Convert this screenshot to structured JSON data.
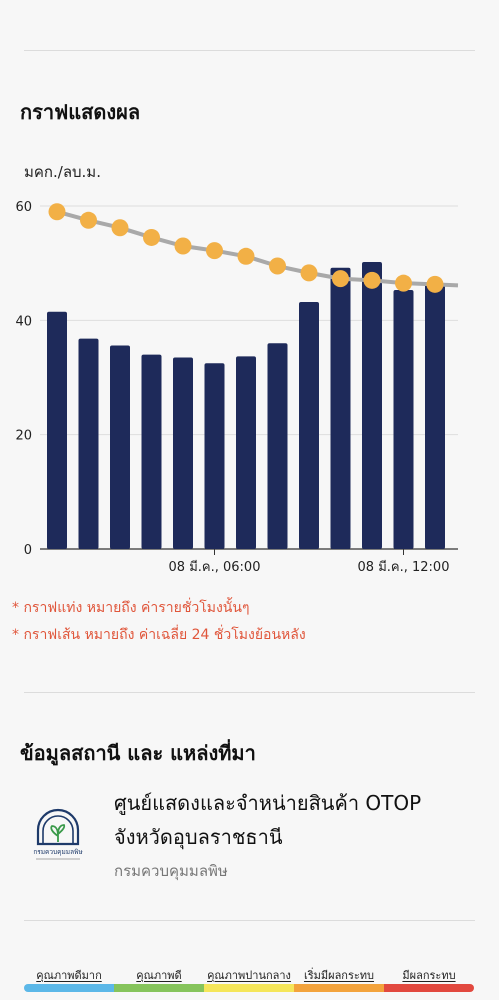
{
  "graph_section": {
    "title": "กราฟแสดงผล",
    "unit": "มคก./ลบ.ม."
  },
  "chart_data": {
    "type": "bar",
    "categories": [
      "",
      "",
      "",
      "",
      "",
      "",
      "",
      "",
      "",
      "",
      "",
      "",
      ""
    ],
    "x_tick_labels": [
      "08 มี.ค., 06:00",
      "08 มี.ค., 12:00"
    ],
    "series": [
      {
        "values": [
          41.5,
          36.8,
          35.6,
          34,
          33.5,
          32.5,
          33.7,
          36,
          43.2,
          49.2,
          50.2,
          45.3,
          46.5
        ]
      },
      {
        "type": "line",
        "values": [
          59,
          57.5,
          56.2,
          54.5,
          53,
          52.2,
          51.2,
          49.5,
          48.3,
          47.3,
          47,
          46.5,
          46.3
        ]
      }
    ],
    "ylim": [
      0,
      60
    ],
    "yticks": [
      0,
      20,
      40,
      60
    ],
    "bar_color": "#1e2a5a",
    "line_color": "#a9a9a9",
    "point_color": "#f2b046",
    "grid": true
  },
  "notes": [
    "* กราฟแท่ง หมายถึง ค่ารายชั่วโมงนั้นๆ",
    "* กราฟเส้น หมายถึง ค่าเฉลี่ย 24 ชั่วโมงย้อนหลัง"
  ],
  "station_section": {
    "title": "ข้อมูลสถานี และ แหล่งที่มา",
    "station_name": "ศูนย์แสดงและจำหน่ายสินค้า OTOP จังหวัดอุบลราชธานี",
    "source": "กรมควบคุมมลพิษ",
    "logo_text": "กรมควบคุมมลพิษ"
  },
  "legend": [
    {
      "label": "คุณภาพดีมาก",
      "color": "#5cb8e8"
    },
    {
      "label": "คุณภาพดี",
      "color": "#86c45c"
    },
    {
      "label": "คุณภาพปานกลาง",
      "color": "#f5e65a"
    },
    {
      "label": "เริ่มมีผลกระทบ",
      "color": "#f3a33c"
    },
    {
      "label": "มีผลกระทบ",
      "color": "#e2493f"
    }
  ]
}
